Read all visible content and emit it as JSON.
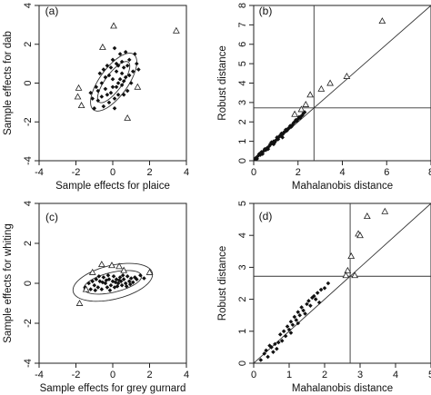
{
  "chart_data": [
    {
      "panel": "(a)",
      "type": "scatter",
      "xlabel": "Sample effects for plaice",
      "ylabel": "Sample effects for dab",
      "xlim": [
        -4,
        4
      ],
      "ylim": [
        -4,
        4
      ],
      "xticks": [
        "-4",
        "-2",
        "0",
        "2",
        "4"
      ],
      "yticks": [
        "-4",
        "-2",
        "0",
        "2",
        "4"
      ],
      "ellipses": [
        {
          "center": [
            0.05,
            0.05
          ],
          "semi_axes": [
            1.3,
            0.45
          ],
          "angle_deg": 52
        },
        {
          "center": [
            0.05,
            0.05
          ],
          "semi_axes": [
            1.8,
            0.75
          ],
          "angle_deg": 52
        }
      ],
      "outliers": [
        [
          0.05,
          2.95
        ],
        [
          -0.55,
          1.85
        ],
        [
          3.45,
          2.7
        ],
        [
          -1.85,
          -0.25
        ],
        [
          -1.7,
          -1.15
        ],
        [
          0.8,
          -1.8
        ],
        [
          1.35,
          -0.2
        ],
        [
          -1.9,
          -0.7
        ]
      ],
      "points": [
        [
          0.0,
          0.2
        ],
        [
          -0.4,
          -0.3
        ],
        [
          0.5,
          0.5
        ],
        [
          0.3,
          0.9
        ],
        [
          -0.8,
          -0.9
        ],
        [
          0.9,
          1.2
        ],
        [
          0.2,
          -0.2
        ],
        [
          -0.2,
          0.4
        ],
        [
          0.6,
          0.1
        ],
        [
          -0.6,
          0.0
        ],
        [
          1.1,
          0.6
        ],
        [
          0.4,
          1.5
        ],
        [
          -1.0,
          -1.3
        ],
        [
          0.1,
          -0.8
        ],
        [
          -0.3,
          0.9
        ],
        [
          0.8,
          -0.4
        ],
        [
          -0.5,
          -1.2
        ],
        [
          0.7,
          1.6
        ],
        [
          1.3,
          1.0
        ],
        [
          -1.2,
          -0.5
        ],
        [
          0.0,
          1.2
        ],
        [
          0.2,
          0.6
        ],
        [
          -0.1,
          -0.5
        ],
        [
          0.5,
          -0.1
        ],
        [
          -0.7,
          0.5
        ],
        [
          1.0,
          0.0
        ],
        [
          0.3,
          -0.6
        ],
        [
          -0.4,
          0.3
        ],
        [
          0.6,
          0.8
        ],
        [
          -0.9,
          -0.2
        ],
        [
          0.9,
          0.4
        ],
        [
          0.1,
          1.8
        ],
        [
          -0.2,
          -1.0
        ],
        [
          1.2,
          1.5
        ],
        [
          -0.6,
          -0.7
        ],
        [
          0.4,
          0.2
        ],
        [
          0.0,
          -0.2
        ],
        [
          -0.3,
          -0.6
        ],
        [
          0.7,
          0.3
        ],
        [
          0.2,
          1.0
        ],
        [
          -1.1,
          -0.8
        ],
        [
          0.5,
          1.1
        ],
        [
          0.8,
          0.9
        ],
        [
          -0.5,
          0.7
        ],
        [
          0.3,
          0.0
        ],
        [
          -0.8,
          -0.4
        ],
        [
          1.4,
          0.7
        ],
        [
          0.1,
          -1.3
        ],
        [
          -0.1,
          0.8
        ],
        [
          0.6,
          -0.6
        ]
      ]
    },
    {
      "panel": "(b)",
      "type": "scatter",
      "xlabel": "Mahalanobis distance",
      "ylabel": "Robust distance",
      "xlim": [
        0,
        8
      ],
      "ylim": [
        0,
        8
      ],
      "xticks": [
        "0",
        "2",
        "4",
        "6",
        "8"
      ],
      "yticks": [
        "0",
        "1",
        "2",
        "3",
        "4",
        "5",
        "6",
        "7",
        "8"
      ],
      "cutoff": 2.72,
      "identity_line": true,
      "outliers": [
        [
          5.8,
          7.2
        ],
        [
          4.2,
          4.35
        ],
        [
          3.45,
          4.0
        ],
        [
          3.05,
          3.7
        ],
        [
          2.35,
          2.9
        ],
        [
          2.55,
          3.4
        ],
        [
          2.15,
          2.65
        ],
        [
          1.85,
          2.4
        ]
      ],
      "points": [
        [
          0.1,
          0.15
        ],
        [
          0.2,
          0.25
        ],
        [
          0.3,
          0.3
        ],
        [
          0.35,
          0.45
        ],
        [
          0.45,
          0.5
        ],
        [
          0.5,
          0.6
        ],
        [
          0.6,
          0.65
        ],
        [
          0.7,
          0.75
        ],
        [
          0.75,
          0.85
        ],
        [
          0.8,
          0.95
        ],
        [
          0.9,
          1.0
        ],
        [
          1.0,
          1.05
        ],
        [
          1.05,
          1.2
        ],
        [
          1.1,
          1.1
        ],
        [
          1.2,
          1.3
        ],
        [
          1.25,
          1.4
        ],
        [
          1.3,
          1.35
        ],
        [
          1.4,
          1.5
        ],
        [
          1.45,
          1.6
        ],
        [
          1.5,
          1.55
        ],
        [
          1.6,
          1.7
        ],
        [
          1.65,
          1.8
        ],
        [
          1.7,
          1.75
        ],
        [
          1.8,
          1.95
        ],
        [
          1.85,
          2.0
        ],
        [
          1.9,
          2.1
        ],
        [
          2.0,
          2.15
        ],
        [
          2.05,
          2.25
        ],
        [
          2.1,
          2.2
        ],
        [
          2.2,
          2.35
        ],
        [
          2.25,
          2.45
        ],
        [
          2.3,
          2.5
        ],
        [
          0.15,
          0.1
        ],
        [
          0.4,
          0.35
        ],
        [
          0.55,
          0.55
        ],
        [
          0.65,
          0.6
        ],
        [
          0.85,
          0.9
        ],
        [
          0.95,
          0.95
        ],
        [
          1.15,
          1.25
        ],
        [
          1.35,
          1.45
        ],
        [
          1.55,
          1.65
        ],
        [
          1.75,
          1.85
        ],
        [
          1.95,
          2.05
        ],
        [
          2.15,
          2.3
        ],
        [
          0.25,
          0.35
        ],
        [
          0.05,
          0.05
        ],
        [
          0.9,
          0.85
        ],
        [
          1.3,
          1.2
        ]
      ]
    },
    {
      "panel": "(c)",
      "type": "scatter",
      "xlabel": "Sample effects for grey gurnard",
      "ylabel": "Sample effects for whiting",
      "xlim": [
        -4,
        4
      ],
      "ylim": [
        -4,
        4
      ],
      "xticks": [
        "-4",
        "-2",
        "0",
        "2",
        "4"
      ],
      "yticks": [
        "-4",
        "-2",
        "0",
        "2",
        "4"
      ],
      "ellipses": [
        {
          "center": [
            0.0,
            0.05
          ],
          "semi_axes": [
            1.6,
            0.5
          ],
          "angle_deg": 12
        },
        {
          "center": [
            0.0,
            0.05
          ],
          "semi_axes": [
            2.2,
            0.85
          ],
          "angle_deg": 12
        }
      ],
      "outliers": [
        [
          -0.6,
          0.95
        ],
        [
          -0.05,
          0.9
        ],
        [
          0.35,
          0.85
        ],
        [
          0.6,
          0.65
        ],
        [
          -1.45,
          -0.3
        ],
        [
          -1.8,
          -1.0
        ],
        [
          -1.1,
          0.55
        ],
        [
          2.0,
          0.55
        ]
      ],
      "points": [
        [
          -1.5,
          -0.2
        ],
        [
          -1.2,
          -0.3
        ],
        [
          -1.0,
          -0.1
        ],
        [
          -0.9,
          0.2
        ],
        [
          -0.8,
          -0.2
        ],
        [
          -0.7,
          0.1
        ],
        [
          -0.6,
          -0.3
        ],
        [
          -0.5,
          0.3
        ],
        [
          -0.4,
          0.0
        ],
        [
          -0.3,
          -0.2
        ],
        [
          -0.2,
          0.2
        ],
        [
          -0.1,
          -0.1
        ],
        [
          0.0,
          0.1
        ],
        [
          0.1,
          -0.2
        ],
        [
          0.2,
          0.2
        ],
        [
          0.3,
          0.0
        ],
        [
          0.4,
          0.3
        ],
        [
          0.5,
          -0.1
        ],
        [
          0.6,
          0.2
        ],
        [
          0.7,
          0.0
        ],
        [
          0.8,
          0.35
        ],
        [
          0.9,
          0.1
        ],
        [
          1.0,
          0.25
        ],
        [
          1.1,
          0.05
        ],
        [
          1.2,
          0.3
        ],
        [
          1.3,
          0.2
        ],
        [
          1.5,
          0.4
        ],
        [
          -1.3,
          0.0
        ],
        [
          -0.95,
          -0.35
        ],
        [
          -0.55,
          0.05
        ],
        [
          -0.25,
          0.4
        ],
        [
          0.05,
          0.35
        ],
        [
          0.25,
          -0.15
        ],
        [
          0.45,
          0.1
        ],
        [
          0.75,
          -0.15
        ],
        [
          -0.15,
          -0.35
        ],
        [
          -0.35,
          0.15
        ],
        [
          0.15,
          0.05
        ],
        [
          0.55,
          0.4
        ],
        [
          0.95,
          -0.05
        ],
        [
          -0.75,
          0.35
        ],
        [
          1.7,
          0.25
        ],
        [
          -1.1,
          0.1
        ],
        [
          0.35,
          0.15
        ]
      ]
    },
    {
      "panel": "(d)",
      "type": "scatter",
      "xlabel": "Mahalanobis distance",
      "ylabel": "Robust distance",
      "xlim": [
        0,
        5
      ],
      "ylim": [
        0,
        5
      ],
      "xticks": [
        "0",
        "1",
        "2",
        "3",
        "4",
        "5"
      ],
      "yticks": [
        "0",
        "1",
        "2",
        "3",
        "4",
        "5"
      ],
      "cutoff": 2.72,
      "identity_line": true,
      "outliers": [
        [
          3.7,
          4.75
        ],
        [
          3.2,
          4.6
        ],
        [
          2.95,
          4.05
        ],
        [
          3.0,
          4.0
        ],
        [
          2.75,
          3.35
        ],
        [
          2.65,
          2.9
        ],
        [
          2.6,
          2.75
        ],
        [
          2.85,
          2.75
        ]
      ],
      "points": [
        [
          0.2,
          0.1
        ],
        [
          0.3,
          0.3
        ],
        [
          0.4,
          0.2
        ],
        [
          0.5,
          0.5
        ],
        [
          0.55,
          0.35
        ],
        [
          0.6,
          0.6
        ],
        [
          0.7,
          0.65
        ],
        [
          0.75,
          0.9
        ],
        [
          0.8,
          0.7
        ],
        [
          0.85,
          1.0
        ],
        [
          0.9,
          0.85
        ],
        [
          0.95,
          1.15
        ],
        [
          1.0,
          1.05
        ],
        [
          1.05,
          1.3
        ],
        [
          1.1,
          1.2
        ],
        [
          1.15,
          1.45
        ],
        [
          1.2,
          1.35
        ],
        [
          1.25,
          1.6
        ],
        [
          1.3,
          1.5
        ],
        [
          1.35,
          1.75
        ],
        [
          1.4,
          1.65
        ],
        [
          1.5,
          1.85
        ],
        [
          1.55,
          1.95
        ],
        [
          1.6,
          1.8
        ],
        [
          1.7,
          2.1
        ],
        [
          1.75,
          2.0
        ],
        [
          1.8,
          2.2
        ],
        [
          1.85,
          1.9
        ],
        [
          1.9,
          2.3
        ],
        [
          0.45,
          0.55
        ],
        [
          0.65,
          0.45
        ],
        [
          1.05,
          0.95
        ],
        [
          1.45,
          1.55
        ],
        [
          1.65,
          2.05
        ],
        [
          2.0,
          2.35
        ],
        [
          2.1,
          2.5
        ],
        [
          1.25,
          1.25
        ],
        [
          0.35,
          0.4
        ]
      ]
    }
  ]
}
